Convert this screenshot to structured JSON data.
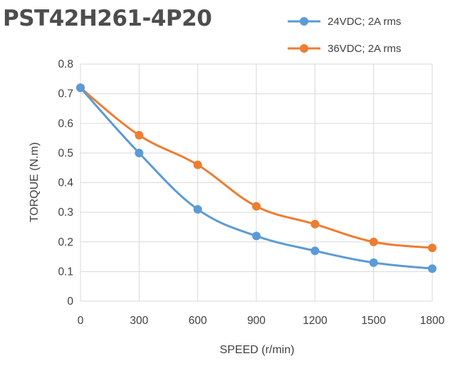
{
  "chart_data": {
    "type": "line",
    "title": "PST42H261-4P20",
    "xlabel": "SPEED (r/min)",
    "ylabel": "TORQUE (N.m)",
    "categories": [
      "0",
      "300",
      "600",
      "900",
      "1200",
      "1500",
      "1800"
    ],
    "x": [
      0,
      300,
      600,
      900,
      1200,
      1500,
      1800
    ],
    "xlim": [
      0,
      1800
    ],
    "ylim": [
      0,
      0.8
    ],
    "y_ticks": [
      "0",
      "0.1",
      "0.2",
      "0.3",
      "0.4",
      "0.5",
      "0.6",
      "0.7",
      "0.8"
    ],
    "grid": true,
    "legend_position": "top-right",
    "smooth": true,
    "series": [
      {
        "name": "24VDC; 2A rms",
        "color": "#5b9bd5",
        "values": [
          0.72,
          0.5,
          0.31,
          0.22,
          0.17,
          0.13,
          0.11
        ]
      },
      {
        "name": "36VDC; 2A rms",
        "color": "#ed7d31",
        "values": [
          0.72,
          0.56,
          0.46,
          0.32,
          0.26,
          0.2,
          0.18
        ]
      }
    ]
  }
}
